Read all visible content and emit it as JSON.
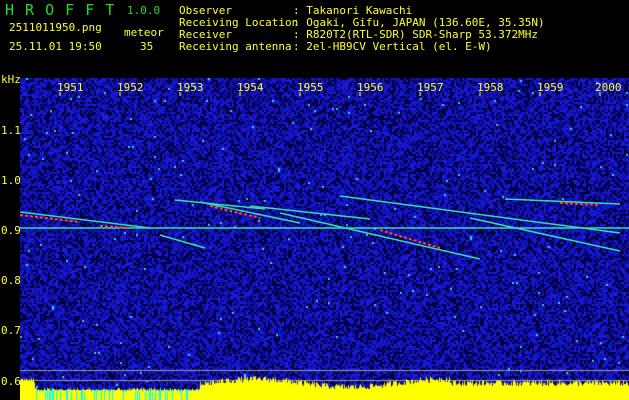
{
  "app": {
    "name": "H R O F F T",
    "version": "1.0.0"
  },
  "file": {
    "filename": "2511011950.png",
    "datetime": "25.11.01 19:50"
  },
  "meteor": {
    "label": "meteor",
    "count": "35"
  },
  "info": [
    {
      "label": "Observer",
      "value": ": Takanori Kawachi"
    },
    {
      "label": "Receiving Location",
      "value": ": Ogaki, Gifu, JAPAN (136.60E, 35.35N)"
    },
    {
      "label": "Receiver",
      "value": ": R820T2(RTL-SDR) SDR-Sharp 53.372MHz"
    },
    {
      "label": "Receiving antenna",
      "value": ": 2el-HB9CV Vertical (el. E-W)"
    }
  ],
  "spectrogram": {
    "y_unit": "kHz",
    "y_ticks": [
      "1.1",
      "1.0",
      "0.9",
      "0.8",
      "0.7",
      "0.6"
    ],
    "x_ticks": [
      "1951",
      "1952",
      "1953",
      "1954",
      "1955",
      "1956",
      "1957",
      "1958",
      "1959",
      "2000"
    ],
    "colors": {
      "background": "#000000",
      "noise": "#1a1acc",
      "text": "#ffff33",
      "title": "#22dd22",
      "histogram": "#ffff00",
      "histogram_low": "#00ffff"
    }
  }
}
